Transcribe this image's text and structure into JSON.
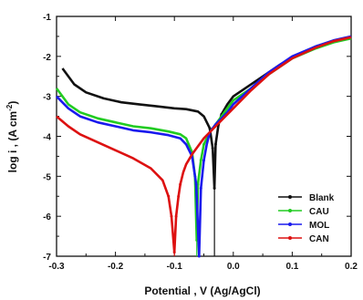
{
  "chart_data": {
    "type": "line",
    "xlabel": "Potential , V (Ag/AgCl)",
    "ylabel_main": "log i , (A cm",
    "ylabel_sup": "-2",
    "ylabel_end": ")",
    "xlim": [
      -0.3,
      0.2
    ],
    "ylim": [
      -7,
      -1
    ],
    "x_ticks": [
      -0.3,
      -0.2,
      -0.1,
      0.0,
      0.1,
      0.2
    ],
    "x_tick_labels": [
      "-0.3",
      "-0.2",
      "-0.1",
      "0.0",
      "0.1",
      "0.2"
    ],
    "y_ticks": [
      -7,
      -6,
      -5,
      -4,
      -3,
      -2,
      -1
    ],
    "y_tick_labels": [
      "-7",
      "-6",
      "-5",
      "-4",
      "-3",
      "-2",
      "-1"
    ],
    "legend_position": "bottom-right",
    "grid": false,
    "series": [
      {
        "name": "Blank",
        "color": "#111111",
        "corr_x": -0.032,
        "corr_y": -5.3,
        "x": [
          -0.29,
          -0.27,
          -0.25,
          -0.22,
          -0.19,
          -0.16,
          -0.13,
          -0.1,
          -0.08,
          -0.06,
          -0.05,
          -0.04,
          -0.035,
          -0.032,
          -0.03,
          -0.025,
          -0.02,
          -0.01,
          0.0,
          0.02,
          0.05,
          0.08,
          0.11,
          0.14,
          0.17,
          0.2
        ],
        "y": [
          -2.3,
          -2.7,
          -2.9,
          -3.05,
          -3.15,
          -3.2,
          -3.25,
          -3.3,
          -3.32,
          -3.38,
          -3.5,
          -3.8,
          -4.3,
          -5.3,
          -4.2,
          -3.7,
          -3.45,
          -3.2,
          -3.0,
          -2.8,
          -2.5,
          -2.2,
          -1.95,
          -1.75,
          -1.62,
          -1.55
        ]
      },
      {
        "name": "CAU",
        "color": "#22cc22",
        "corr_x": -0.062,
        "corr_y": -6.6,
        "x": [
          -0.3,
          -0.28,
          -0.26,
          -0.23,
          -0.2,
          -0.17,
          -0.14,
          -0.11,
          -0.09,
          -0.08,
          -0.07,
          -0.065,
          -0.062,
          -0.06,
          -0.055,
          -0.05,
          -0.04,
          -0.03,
          -0.02,
          -0.01,
          0.0,
          0.03,
          0.06,
          0.1,
          0.14,
          0.17,
          0.2
        ],
        "y": [
          -2.8,
          -3.2,
          -3.4,
          -3.55,
          -3.65,
          -3.75,
          -3.8,
          -3.88,
          -3.95,
          -4.05,
          -4.4,
          -5.0,
          -6.6,
          -5.2,
          -4.6,
          -4.2,
          -3.9,
          -3.7,
          -3.5,
          -3.3,
          -3.1,
          -2.8,
          -2.45,
          -2.05,
          -1.8,
          -1.65,
          -1.55
        ]
      },
      {
        "name": "MOL",
        "color": "#1a1aee",
        "corr_x": -0.058,
        "corr_y": -7.0,
        "x": [
          -0.3,
          -0.28,
          -0.26,
          -0.23,
          -0.2,
          -0.17,
          -0.14,
          -0.11,
          -0.09,
          -0.08,
          -0.07,
          -0.063,
          -0.058,
          -0.055,
          -0.05,
          -0.045,
          -0.04,
          -0.03,
          -0.02,
          -0.01,
          0.0,
          0.03,
          0.06,
          0.1,
          0.14,
          0.17,
          0.2
        ],
        "y": [
          -3.0,
          -3.3,
          -3.5,
          -3.65,
          -3.75,
          -3.85,
          -3.9,
          -3.97,
          -4.05,
          -4.2,
          -4.5,
          -5.2,
          -7.0,
          -5.3,
          -4.6,
          -4.2,
          -3.9,
          -3.7,
          -3.55,
          -3.4,
          -3.2,
          -2.8,
          -2.4,
          -2.0,
          -1.75,
          -1.6,
          -1.5
        ]
      },
      {
        "name": "CAN",
        "color": "#dd1111",
        "corr_x": -0.1,
        "corr_y": -6.9,
        "x": [
          -0.3,
          -0.28,
          -0.26,
          -0.23,
          -0.2,
          -0.17,
          -0.14,
          -0.12,
          -0.11,
          -0.105,
          -0.1,
          -0.097,
          -0.093,
          -0.09,
          -0.085,
          -0.08,
          -0.07,
          -0.06,
          -0.05,
          -0.03,
          0.0,
          0.03,
          0.06,
          0.1,
          0.14,
          0.17,
          0.2
        ],
        "y": [
          -3.5,
          -3.75,
          -3.95,
          -4.15,
          -4.35,
          -4.55,
          -4.8,
          -5.1,
          -5.5,
          -6.0,
          -6.9,
          -6.0,
          -5.5,
          -5.2,
          -4.9,
          -4.7,
          -4.45,
          -4.25,
          -4.05,
          -3.75,
          -3.3,
          -2.85,
          -2.45,
          -2.05,
          -1.78,
          -1.62,
          -1.52
        ]
      }
    ]
  }
}
